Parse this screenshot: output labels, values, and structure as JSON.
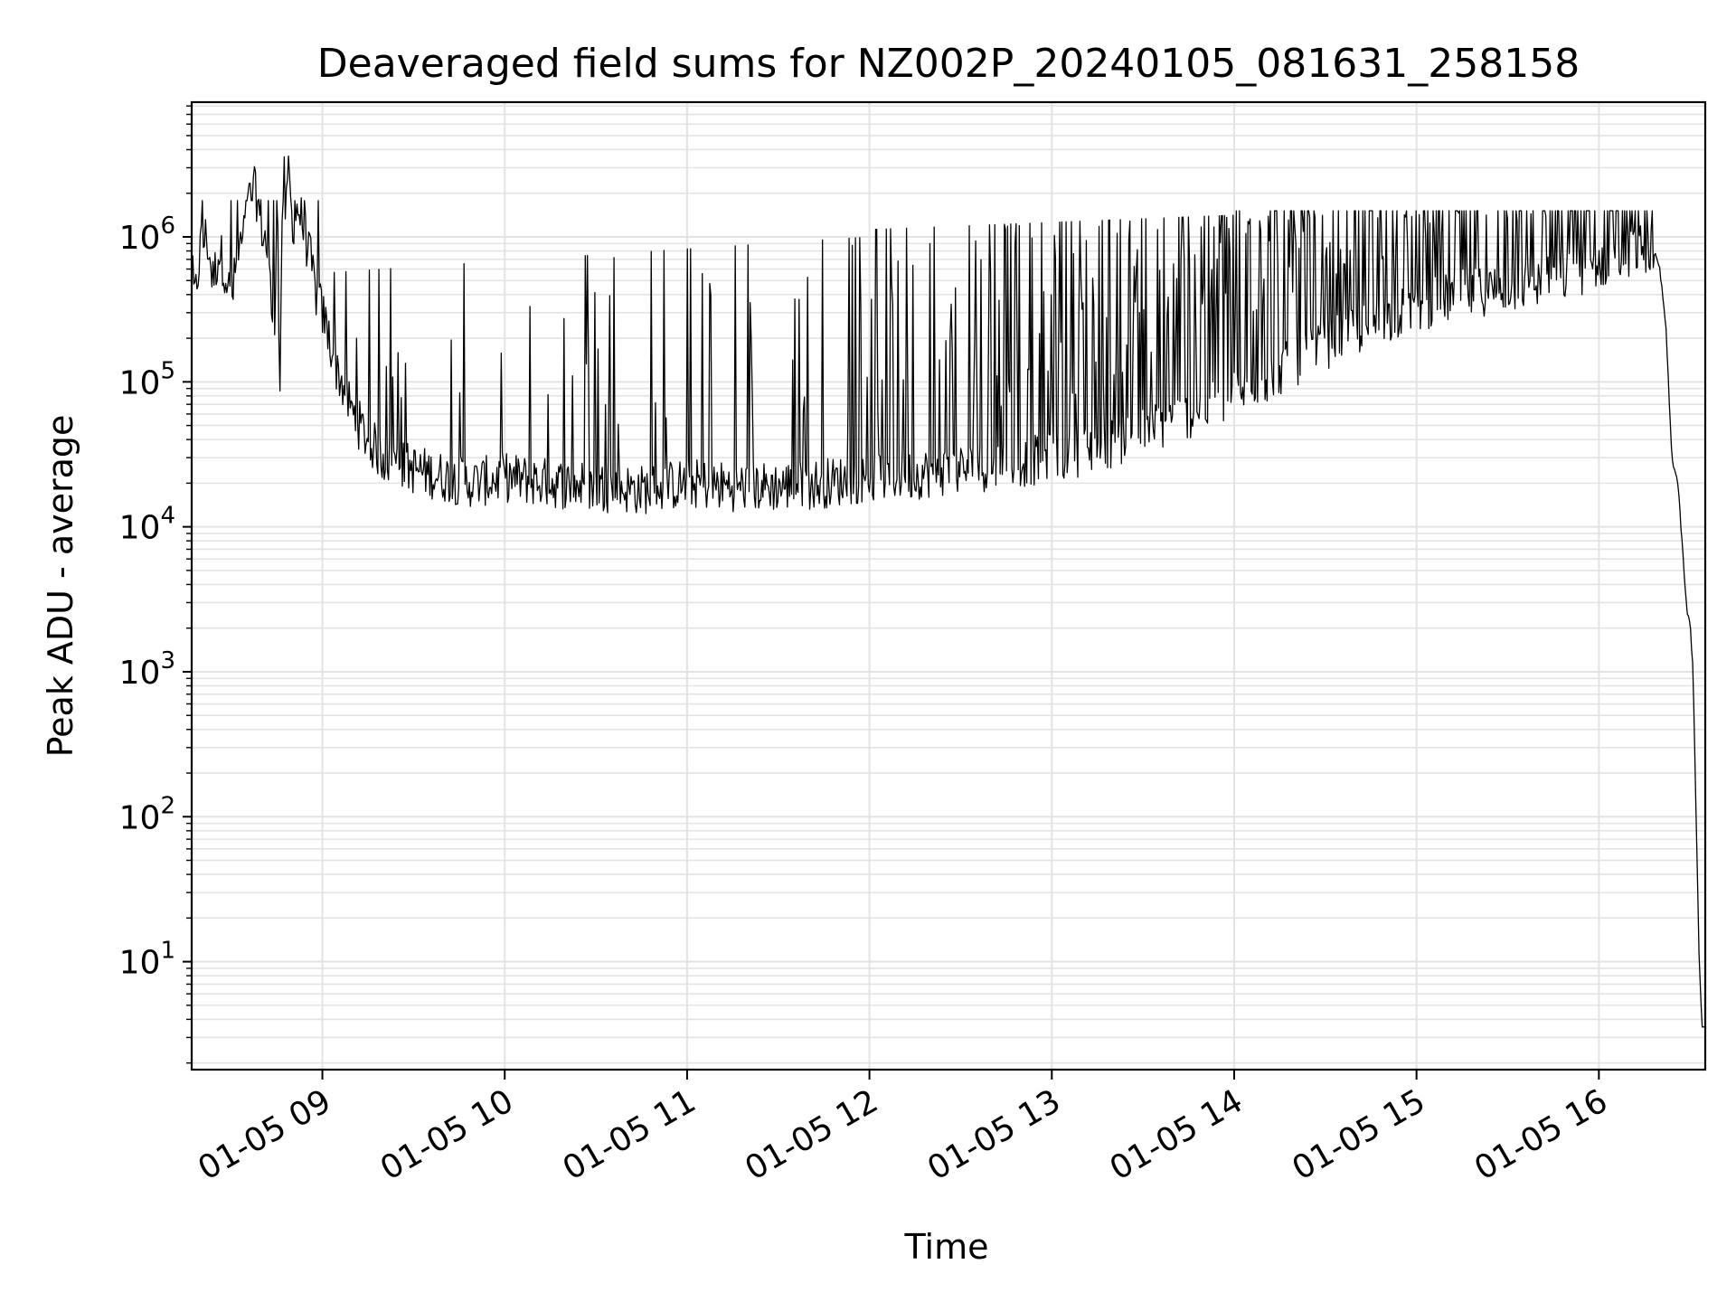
{
  "chart_data": {
    "type": "line",
    "title": "Deaveraged field sums for NZ002P_20240105_081631_258158",
    "xlabel": "Time",
    "ylabel": "Peak ADU - average",
    "yscale": "log",
    "xlim": [
      "2024-01-05 08:17",
      "2024-01-05 16:35"
    ],
    "ylim": [
      1.8,
      8500000
    ],
    "x_ticks": [
      "01-05 09",
      "01-05 10",
      "01-05 11",
      "01-05 12",
      "01-05 13",
      "01-05 14",
      "01-05 15",
      "01-05 16"
    ],
    "y_ticks": [
      {
        "base": "10",
        "exp": "1",
        "value": 10
      },
      {
        "base": "10",
        "exp": "2",
        "value": 100
      },
      {
        "base": "10",
        "exp": "3",
        "value": 1000
      },
      {
        "base": "10",
        "exp": "4",
        "value": 10000
      },
      {
        "base": "10",
        "exp": "5",
        "value": 100000
      },
      {
        "base": "10",
        "exp": "6",
        "value": 1000000
      }
    ],
    "grid": "major and minor",
    "line_color": "#000000",
    "series": [
      {
        "points": [
          [
            "08:17",
            600000
          ],
          [
            "08:18",
            350000
          ],
          [
            "08:20",
            900000
          ],
          [
            "08:22",
            1000000
          ],
          [
            "08:24",
            500000
          ],
          [
            "08:26",
            800000
          ],
          [
            "08:28",
            600000
          ],
          [
            "08:30",
            350000
          ],
          [
            "08:32",
            700000
          ],
          [
            "08:34",
            1000000
          ],
          [
            "08:36",
            1800000
          ],
          [
            "08:38",
            2100000
          ],
          [
            "08:40",
            1200000
          ],
          [
            "08:42",
            800000
          ],
          [
            "08:44",
            200000
          ],
          [
            "08:45",
            900000
          ],
          [
            "08:46",
            80000
          ],
          [
            "08:47",
            4000000
          ],
          [
            "08:48",
            1300000
          ],
          [
            "08:49",
            3200000
          ],
          [
            "08:50",
            1200000
          ],
          [
            "08:52",
            1600000
          ],
          [
            "08:54",
            1100000
          ],
          [
            "08:56",
            700000
          ],
          [
            "08:58",
            400000
          ],
          [
            "09:00",
            300000
          ],
          [
            "09:05",
            120000
          ],
          [
            "09:10",
            60000
          ],
          [
            "09:15",
            40000
          ],
          [
            "09:20",
            30000
          ],
          [
            "09:30",
            25000
          ],
          [
            "09:40",
            22000
          ],
          [
            "09:50",
            20000
          ],
          [
            "10:00",
            22000
          ],
          [
            "10:15",
            20000
          ],
          [
            "10:30",
            19000
          ],
          [
            "10:45",
            18000
          ],
          [
            "11:00",
            20000
          ],
          [
            "11:15",
            19000
          ],
          [
            "11:30",
            19000
          ],
          [
            "11:45",
            20000
          ],
          [
            "12:00",
            22000
          ],
          [
            "12:15",
            23000
          ],
          [
            "12:30",
            25000
          ],
          [
            "12:45",
            27000
          ],
          [
            "13:00",
            30000
          ],
          [
            "13:15",
            35000
          ],
          [
            "13:30",
            45000
          ],
          [
            "13:45",
            60000
          ],
          [
            "14:00",
            80000
          ],
          [
            "14:15",
            120000
          ],
          [
            "14:30",
            180000
          ],
          [
            "14:45",
            250000
          ],
          [
            "15:00",
            330000
          ],
          [
            "15:15",
            400000
          ],
          [
            "15:30",
            450000
          ],
          [
            "15:45",
            500000
          ],
          [
            "16:00",
            650000
          ],
          [
            "16:10",
            800000
          ],
          [
            "16:15",
            850000
          ],
          [
            "16:18",
            800000
          ],
          [
            "16:20",
            600000
          ],
          [
            "16:22",
            250000
          ],
          [
            "16:24",
            30000
          ],
          [
            "16:26",
            20000
          ],
          [
            "16:28",
            5000
          ],
          [
            "16:29",
            2500
          ],
          [
            "16:30",
            2200
          ],
          [
            "16:31",
            1000
          ],
          [
            "16:32",
            100
          ],
          [
            "16:33",
            10
          ],
          [
            "16:34",
            3.5
          ]
        ]
      }
    ]
  }
}
